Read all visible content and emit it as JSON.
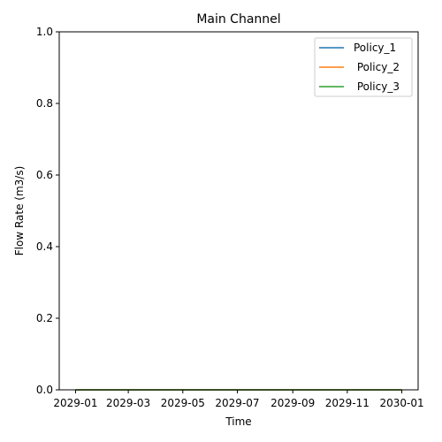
{
  "chart_data": {
    "type": "line",
    "title": "Main Channel",
    "xlabel": "Time",
    "ylabel": "Flow Rate (m3/s)",
    "x": [
      "2029-01-01",
      "2030-01-01"
    ],
    "x_range": [
      "2029-01-01",
      "2030-01-01"
    ],
    "ylim": [
      0,
      1.0
    ],
    "xticks": [
      "2029-01",
      "2029-03",
      "2029-05",
      "2029-07",
      "2029-09",
      "2029-11",
      "2030-01"
    ],
    "yticks": [
      "0.0",
      "0.2",
      "0.4",
      "0.6",
      "0.8",
      "1.0"
    ],
    "grid": false,
    "legend_placement": "upper-right",
    "series": [
      {
        "name": "Policy_1",
        "color": "#1f77b4",
        "values": [
          0,
          0
        ]
      },
      {
        "name": " Policy_2",
        "color": "#ff7f0e",
        "values": [
          0,
          0
        ]
      },
      {
        "name": " Policy_3",
        "color": "#2ca02c",
        "values": [
          0,
          0
        ]
      }
    ]
  }
}
